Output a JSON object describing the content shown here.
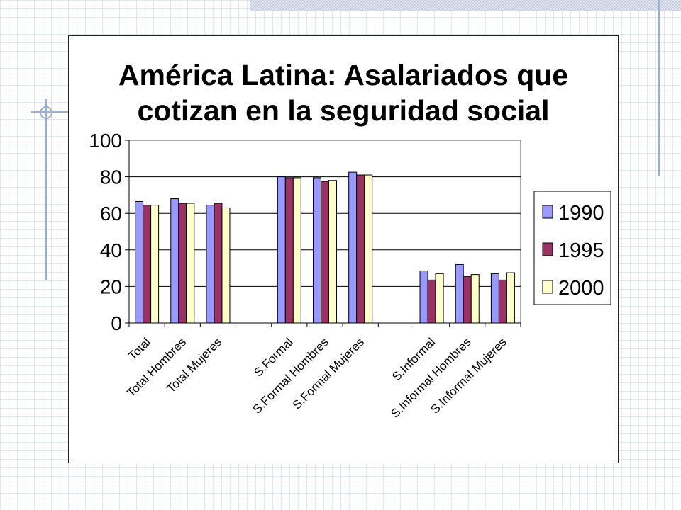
{
  "chart_data": {
    "type": "bar",
    "title_lines": [
      "América Latina: Asalariados que",
      "cotizan en la seguridad social"
    ],
    "categories": [
      "Total",
      "Total Hombres",
      "Total Mujeres",
      "",
      "S.Formal",
      "S.Formal Hombres",
      "S.Formal Mujeres",
      "",
      "S.Informal",
      "S.Informal Hombres",
      "S.Informal Mujeres"
    ],
    "series": [
      {
        "name": "1990",
        "color": "#9999ff",
        "values": [
          66.5,
          68,
          64.5,
          null,
          80,
          79.5,
          82.5,
          null,
          28.5,
          32,
          27
        ]
      },
      {
        "name": "1995",
        "color": "#993366",
        "values": [
          64.5,
          65.5,
          65.5,
          null,
          79.5,
          77.5,
          81,
          null,
          23.5,
          25.5,
          23.5
        ]
      },
      {
        "name": "2000",
        "color": "#ffffcc",
        "values": [
          64.5,
          65.5,
          63,
          null,
          79.5,
          78,
          81,
          null,
          27,
          26.5,
          27.5
        ]
      }
    ],
    "ylim": [
      0,
      100
    ],
    "yticks": [
      "0",
      "20",
      "40",
      "60",
      "80",
      "100"
    ],
    "legend_position": "right",
    "grid": "horizontal"
  }
}
